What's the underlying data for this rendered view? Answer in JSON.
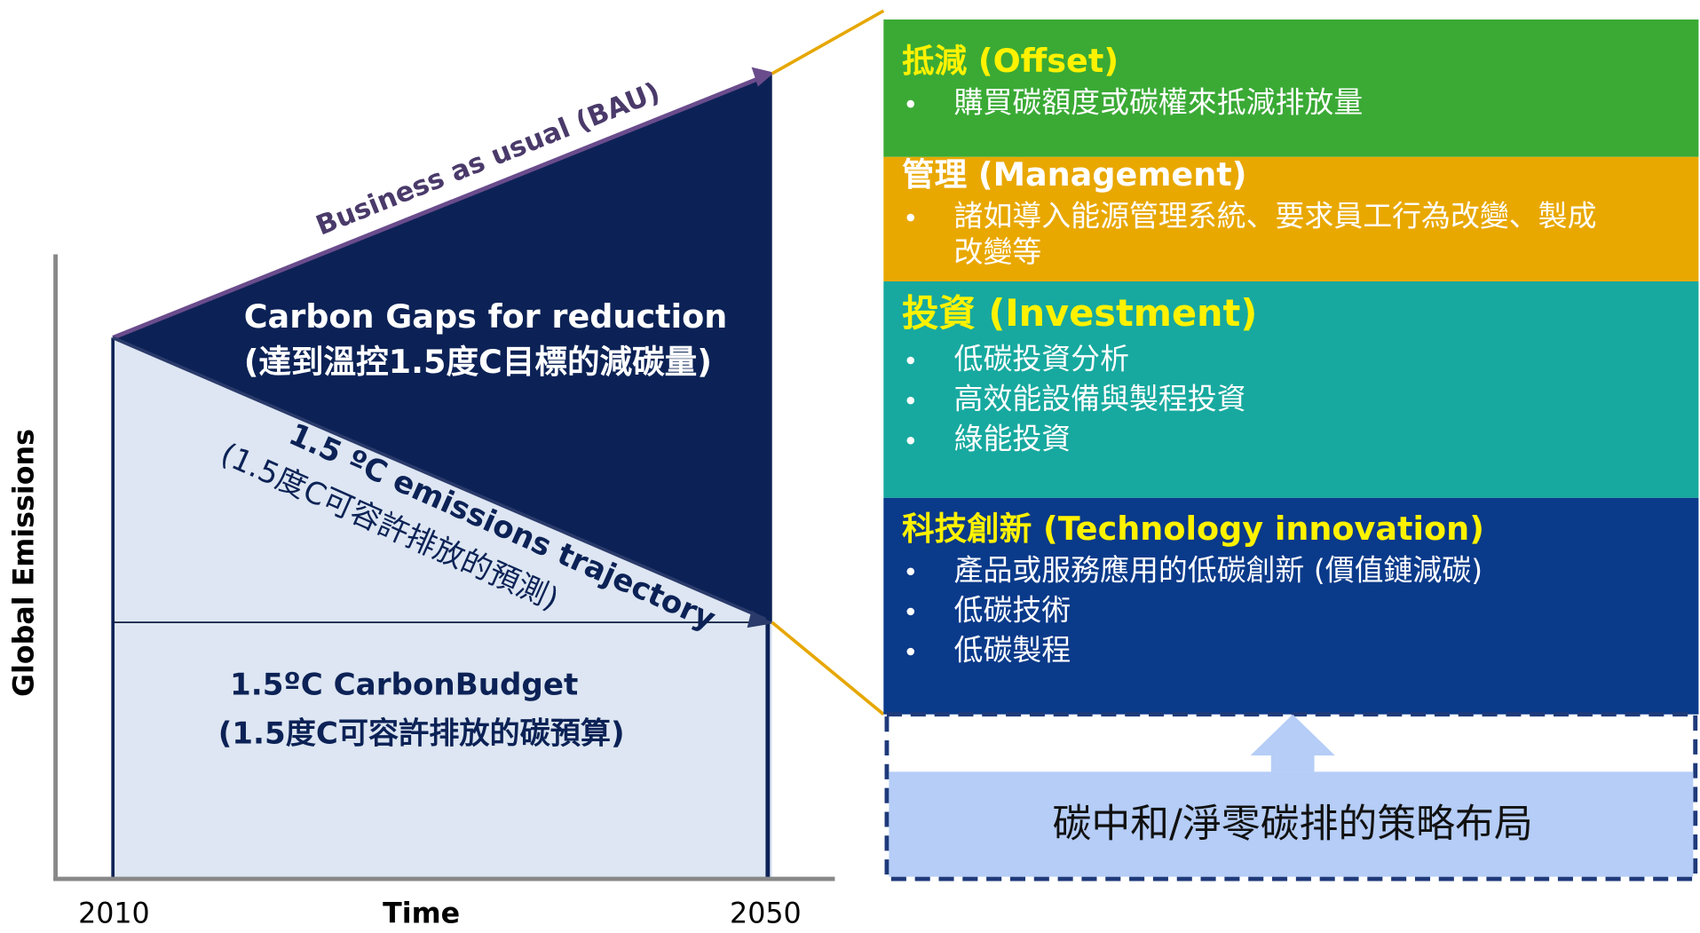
{
  "left": {
    "y_axis_label": "Global Emissions",
    "x_axis_label": "Time",
    "x_start": "2010",
    "x_end": "2050",
    "bau_label": "Business as usual (BAU)",
    "gap_label": [
      "Carbon Gaps for reduction",
      "(達到溫控1.5度C目標的減碳量)"
    ],
    "trajectory_label": [
      "1.5 ºC emissions trajectory",
      "(1.5度C可容許排放的預測)"
    ],
    "budget_label": [
      "1.5ºC CarbonBudget",
      "(1.5度C可容許排放的碳預算)"
    ]
  },
  "sections": [
    {
      "title": "抵減 (Offset)",
      "bullets": [
        [
          "購買碳額度或碳權來抵減排放量"
        ]
      ]
    },
    {
      "title": "管理 (Management)",
      "bullets": [
        [
          "諸如導入能源管理系統、要求員工行為改變、製成",
          "改變等"
        ]
      ]
    },
    {
      "title": "投資 (Investment)",
      "bullets": [
        [
          "低碳投資分析"
        ],
        [
          "高效能設備與製程投資"
        ],
        [
          "綠能投資"
        ]
      ]
    },
    {
      "title": "科技創新 (Technology innovation)",
      "bullets": [
        [
          "產品或服務應用的低碳創新 (價值鏈減碳)"
        ],
        [
          "低碳技術"
        ],
        [
          "低碳製程"
        ]
      ]
    }
  ],
  "base_label": "碳中和/淨零碳排的策略布局"
}
